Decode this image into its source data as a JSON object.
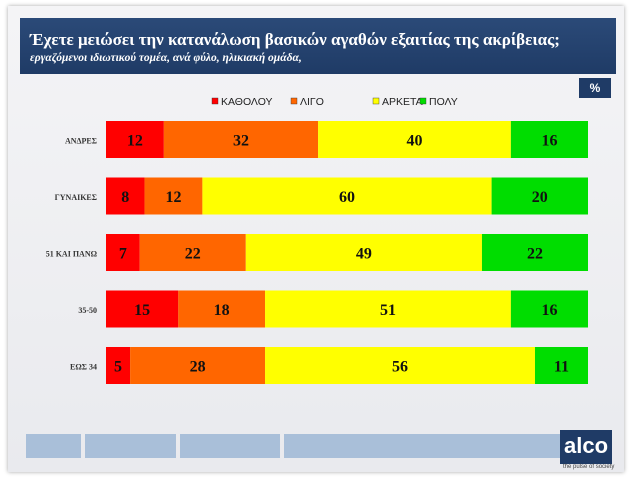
{
  "header": {
    "title": "Έχετε μειώσει την κατανάλωση βασικών αγαθών εξαιτίας της ακρίβειας;",
    "subtitle": "εργαζόμενοι ιδιωτικού τομέα, ανά φύλο, ηλικιακή ομάδα,"
  },
  "unit_badge": "%",
  "brand": {
    "logo": "alco",
    "tagline": "the pulse of society"
  },
  "colors": {
    "header_bg": "#1f3b66",
    "kathodou": "#ff0000",
    "ligo": "#ff6600",
    "arketa": "#ffff00",
    "poly": "#00dd00",
    "remainder": "#009900"
  },
  "chart_data": {
    "type": "bar",
    "orientation": "horizontal",
    "stacked": true,
    "categories": [
      "ΑΝΔΡΕΣ",
      "ΓΥΝΑΙΚΕΣ",
      "51 ΚΑΙ ΠΑΝΩ",
      "35-50",
      "ΕΩΣ 34"
    ],
    "series": [
      {
        "name": "ΚΑΘΟΛΟΥ",
        "color": "#ff0000",
        "values": [
          12,
          8,
          7,
          15,
          5
        ]
      },
      {
        "name": "ΛΙΓΟ",
        "color": "#ff6600",
        "values": [
          32,
          12,
          22,
          18,
          28
        ]
      },
      {
        "name": "ΑΡΚΕΤΑ",
        "color": "#ffff00",
        "values": [
          40,
          60,
          49,
          51,
          56
        ]
      },
      {
        "name": "ΠΟΛΥ",
        "color": "#00dd00",
        "values": [
          16,
          20,
          22,
          16,
          11
        ]
      }
    ],
    "xlim": [
      0,
      100
    ],
    "legend_position": "top"
  }
}
